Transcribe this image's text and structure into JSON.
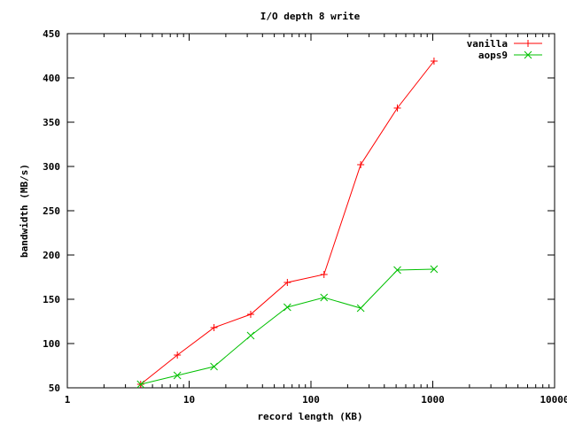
{
  "chart_data": {
    "type": "line",
    "title": "I/O depth 8 write",
    "xlabel": "record length (KB)",
    "ylabel": "bandwidth (MB/s)",
    "xscale": "log",
    "xlim": [
      1,
      10000
    ],
    "ylim": [
      50,
      450
    ],
    "x_ticks": [
      1,
      10,
      100,
      1000,
      10000
    ],
    "x_tick_labels": [
      "1",
      "10",
      "100",
      "1000",
      "10000"
    ],
    "y_ticks": [
      50,
      100,
      150,
      200,
      250,
      300,
      350,
      400,
      450
    ],
    "y_tick_labels": [
      "50",
      "100",
      "150",
      "200",
      "250",
      "300",
      "350",
      "400",
      "450"
    ],
    "grid": false,
    "legend_position": "top-right",
    "x": [
      4,
      8,
      16,
      32,
      64,
      128,
      256,
      512,
      1024
    ],
    "series": [
      {
        "name": "vanilla",
        "color": "#ff0000",
        "marker": "plus",
        "values": [
          54,
          87,
          118,
          133,
          169,
          178,
          302,
          366,
          419
        ]
      },
      {
        "name": "aops9",
        "color": "#00c000",
        "marker": "cross",
        "values": [
          54,
          64,
          74,
          109,
          141,
          152,
          140,
          183,
          184
        ]
      }
    ]
  }
}
